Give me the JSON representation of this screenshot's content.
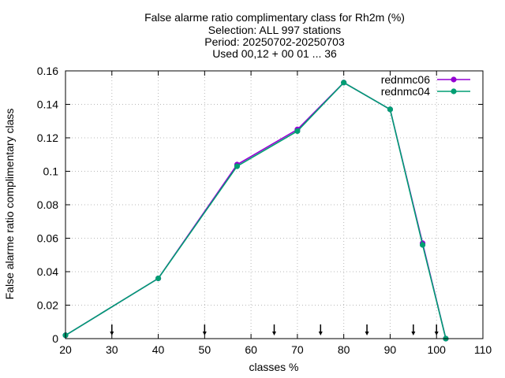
{
  "chart_data": {
    "type": "line",
    "title_lines": [
      "False alarme ratio complimentary class  for Rh2m (%)",
      "Selection: ALL    997 stations",
      "Period: 20250702-20250703",
      "Used 00,12 + 00 01 ... 36"
    ],
    "xlabel": "classes %",
    "ylabel": "False alarme ratio complimentary class",
    "xlim": [
      20,
      110
    ],
    "ylim": [
      0,
      0.16
    ],
    "x_ticks": [
      20,
      30,
      40,
      50,
      60,
      70,
      80,
      90,
      100,
      110
    ],
    "x_tick_labels": [
      "20",
      "30",
      "40",
      "50",
      "60",
      "70",
      "80",
      "90",
      "100",
      "110"
    ],
    "y_ticks": [
      0,
      0.02,
      0.04,
      0.06,
      0.08,
      0.1,
      0.12,
      0.14,
      0.16
    ],
    "y_tick_labels": [
      "0",
      "0.02",
      "0.04",
      "0.06",
      "0.08",
      "0.1",
      "0.12",
      "0.14",
      "0.16"
    ],
    "grid": true,
    "legend_position": "top-right",
    "class_markers_x": [
      30,
      50,
      65,
      75,
      85,
      95,
      100
    ],
    "series": [
      {
        "name": "rednmc06",
        "color": "#9400d3",
        "x": [
          20,
          40,
          57,
          70,
          80,
          90,
          97,
          102
        ],
        "y": [
          0.002,
          0.036,
          0.104,
          0.125,
          0.153,
          0.137,
          0.057,
          0.0
        ]
      },
      {
        "name": "rednmc04",
        "color": "#009e73",
        "x": [
          20,
          40,
          57,
          70,
          80,
          90,
          97,
          102
        ],
        "y": [
          0.002,
          0.036,
          0.103,
          0.124,
          0.153,
          0.137,
          0.056,
          0.0
        ]
      }
    ]
  }
}
